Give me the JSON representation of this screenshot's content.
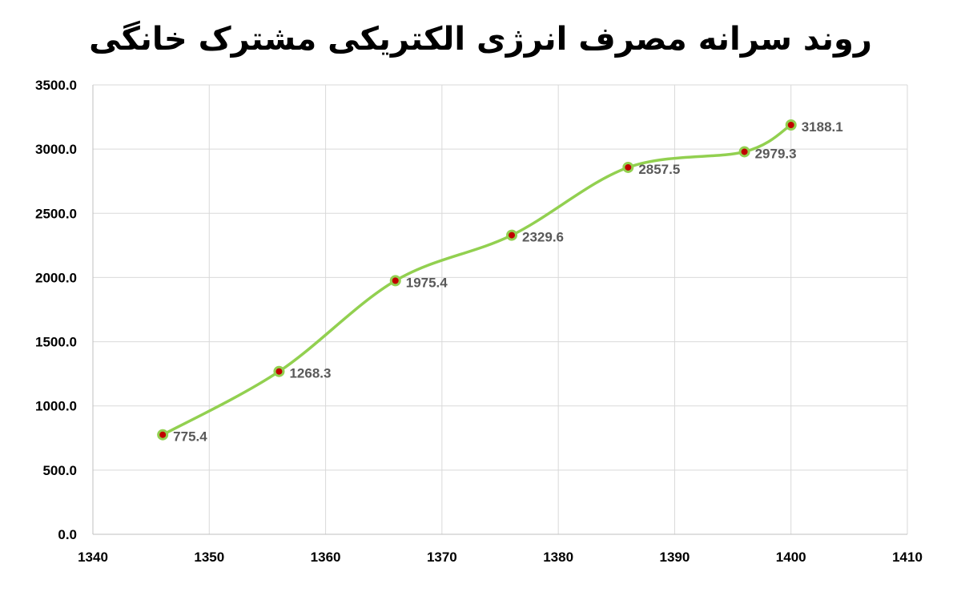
{
  "chart_data": {
    "type": "line",
    "title": "روند سرانه مصرف انرژی الکتریکی مشترک خانگی",
    "xlabel": "",
    "ylabel": "",
    "xlim": [
      1340,
      1410
    ],
    "ylim": [
      0,
      3500
    ],
    "x_ticks": [
      1340,
      1350,
      1360,
      1370,
      1380,
      1390,
      1400,
      1410
    ],
    "y_ticks": [
      0,
      500,
      1000,
      1500,
      2000,
      2500,
      3000,
      3500
    ],
    "grid": true,
    "smooth": true,
    "legend": "none",
    "series": [
      {
        "color": "#92D050",
        "marker_color": "#C00000",
        "x": [
          1346,
          1356,
          1366,
          1376,
          1386,
          1396,
          1400
        ],
        "y": [
          775.4,
          1268.3,
          1975.4,
          2329.6,
          2857.5,
          2979.3,
          3188.1
        ],
        "data_labels": [
          "775.4",
          "1268.3",
          "1975.4",
          "2329.6",
          "2857.5",
          "2979.3",
          "3188.1"
        ]
      }
    ]
  }
}
